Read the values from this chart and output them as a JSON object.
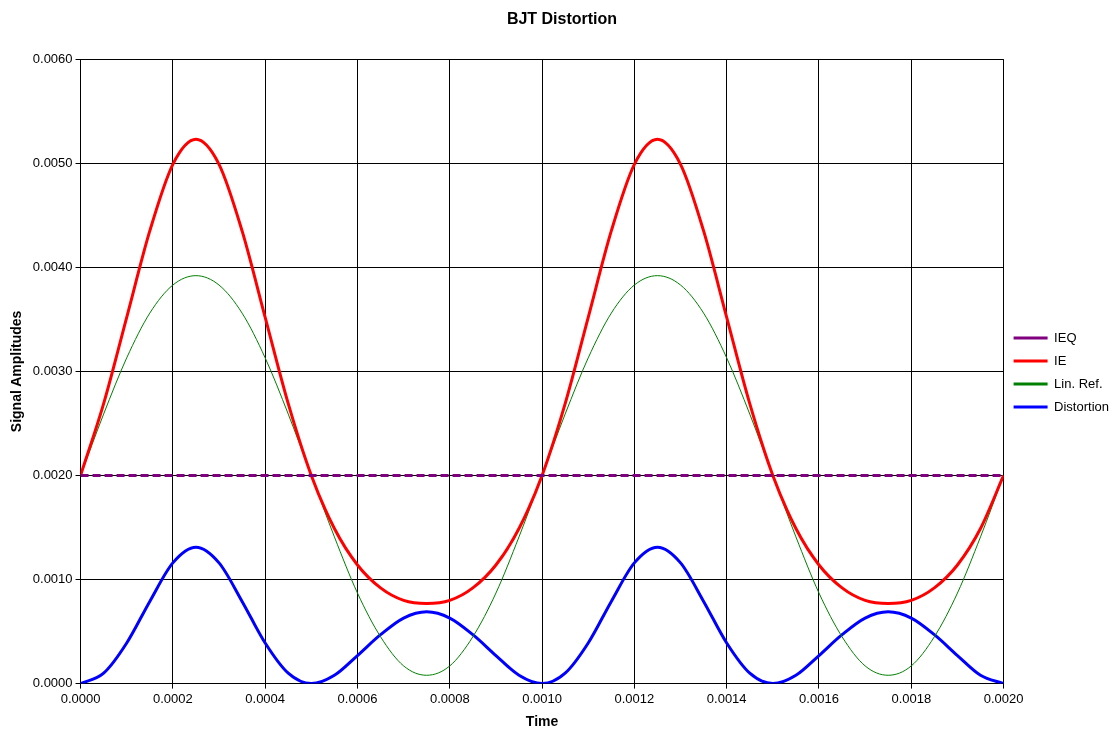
{
  "chart_data": {
    "type": "line",
    "title": "BJT Distortion",
    "xlabel": "Time",
    "ylabel": "Signal Amplitudes",
    "x": [
      0,
      5e-05,
      0.0001,
      0.00015,
      0.0002,
      0.00025,
      0.0003,
      0.00035,
      0.0004,
      0.00045,
      0.0005,
      0.00055,
      0.0006,
      0.00065,
      0.0007,
      0.00075,
      0.0008,
      0.00085,
      0.0009,
      0.00095,
      0.001,
      0.00105,
      0.0011,
      0.00115,
      0.0012,
      0.00125,
      0.0013,
      0.00135,
      0.0014,
      0.00145,
      0.0015,
      0.00155,
      0.0016,
      0.00165,
      0.0017,
      0.00175,
      0.0018,
      0.00185,
      0.0019,
      0.00195,
      0.002
    ],
    "series": [
      {
        "name": "IEQ",
        "color": "#800080",
        "line_style": "dashed",
        "values": [
          0.002,
          0.002,
          0.002,
          0.002,
          0.002,
          0.002,
          0.002,
          0.002,
          0.002,
          0.002,
          0.002,
          0.002,
          0.002,
          0.002,
          0.002,
          0.002,
          0.002,
          0.002,
          0.002,
          0.002,
          0.002,
          0.002,
          0.002,
          0.002,
          0.002,
          0.002,
          0.002,
          0.002,
          0.002,
          0.002,
          0.002,
          0.002,
          0.002,
          0.002,
          0.002,
          0.002,
          0.002,
          0.002,
          0.002,
          0.002,
          0.002
        ]
      },
      {
        "name": "IE",
        "color": "#ff0000",
        "line_style": "solid",
        "values": [
          0.002,
          0.00269,
          0.00352,
          0.00435,
          0.00499,
          0.00523,
          0.00499,
          0.00435,
          0.00352,
          0.00269,
          0.002,
          0.00149,
          0.00114,
          0.00092,
          0.0008,
          0.00077,
          0.0008,
          0.00092,
          0.00114,
          0.00149,
          0.002,
          0.00269,
          0.00352,
          0.00435,
          0.00499,
          0.00523,
          0.00499,
          0.00435,
          0.00352,
          0.00269,
          0.002,
          0.00149,
          0.00114,
          0.00092,
          0.0008,
          0.00077,
          0.0008,
          0.00092,
          0.00114,
          0.00149,
          0.002
        ]
      },
      {
        "name": "Lin. Ref.",
        "color": "#008000",
        "line_style": "solid",
        "values": [
          0.002,
          0.00259,
          0.00313,
          0.00356,
          0.00383,
          0.00392,
          0.00383,
          0.00356,
          0.00313,
          0.00259,
          0.002,
          0.00141,
          0.00087,
          0.00045,
          0.00017,
          8e-05,
          0.00017,
          0.00045,
          0.00087,
          0.00141,
          0.002,
          0.00259,
          0.00313,
          0.00356,
          0.00383,
          0.00392,
          0.00383,
          0.00356,
          0.00313,
          0.00259,
          0.002,
          0.00141,
          0.00087,
          0.00045,
          0.00017,
          8e-05,
          0.00017,
          0.00045,
          0.00087,
          0.00141,
          0.002
        ]
      },
      {
        "name": "Distortion",
        "color": "#0000ff",
        "line_style": "solid",
        "values": [
          0,
          0.0001,
          0.00039,
          0.00079,
          0.00116,
          0.00131,
          0.00116,
          0.00079,
          0.00039,
          0.0001,
          0,
          8e-05,
          0.00027,
          0.00047,
          0.00063,
          0.00069,
          0.00063,
          0.00047,
          0.00027,
          8e-05,
          0,
          0.0001,
          0.00039,
          0.00079,
          0.00116,
          0.00131,
          0.00116,
          0.00079,
          0.00039,
          0.0001,
          0,
          8e-05,
          0.00027,
          0.00047,
          0.00063,
          0.00069,
          0.00063,
          0.00047,
          0.00027,
          8e-05,
          0
        ]
      }
    ],
    "xlim": [
      0,
      0.002
    ],
    "xticks": [
      {
        "value": 0,
        "label": "0.0000"
      },
      {
        "value": 0.0002,
        "label": "0.0002"
      },
      {
        "value": 0.0004,
        "label": "0.0004"
      },
      {
        "value": 0.0006,
        "label": "0.0006"
      },
      {
        "value": 0.0008,
        "label": "0.0008"
      },
      {
        "value": 0.001,
        "label": "0.0010"
      },
      {
        "value": 0.0012,
        "label": "0.0012"
      },
      {
        "value": 0.0014,
        "label": "0.0014"
      },
      {
        "value": 0.0016,
        "label": "0.0016"
      },
      {
        "value": 0.0018,
        "label": "0.0018"
      },
      {
        "value": 0.002,
        "label": "0.0020"
      }
    ],
    "ylim": [
      0,
      0.006
    ],
    "yticks": [
      {
        "value": 0,
        "label": "0.0000"
      },
      {
        "value": 0.001,
        "label": "0.0010"
      },
      {
        "value": 0.002,
        "label": "0.0020"
      },
      {
        "value": 0.003,
        "label": "0.0030"
      },
      {
        "value": 0.004,
        "label": "0.0040"
      },
      {
        "value": 0.005,
        "label": "0.0050"
      },
      {
        "value": 0.006,
        "label": "0.0060"
      }
    ],
    "grid": true,
    "legend": "right",
    "marker": "none"
  }
}
